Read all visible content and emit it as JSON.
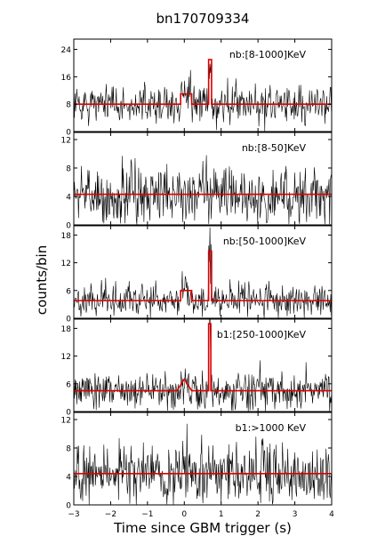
{
  "title": "bn170709334",
  "xlabel": "Time since GBM trigger (s)",
  "ylabel": "counts/bin",
  "colors": {
    "data": "#000000",
    "model": "#dd0000"
  },
  "chart_data": {
    "type": "line",
    "xlim": [
      -3,
      4
    ],
    "xticks": [
      -3,
      -2,
      -1,
      0,
      1,
      2,
      3,
      4
    ],
    "panels": [
      {
        "label": "nb:[8-1000]KeV",
        "ylim": [
          0,
          27
        ],
        "yticks": [
          0,
          8,
          16,
          24
        ],
        "baseline": 8,
        "noise": 2.8,
        "model": [
          [
            -3,
            8
          ],
          [
            -0.1,
            8
          ],
          [
            -0.1,
            11
          ],
          [
            0.2,
            11
          ],
          [
            0.2,
            8
          ],
          [
            0.66,
            8
          ],
          [
            0.66,
            21
          ],
          [
            0.74,
            21
          ],
          [
            0.74,
            8
          ],
          [
            4,
            8
          ]
        ]
      },
      {
        "label": "nb:[8-50]KeV",
        "ylim": [
          0,
          13
        ],
        "yticks": [
          0,
          4,
          8,
          12
        ],
        "baseline": 4.3,
        "noise": 2.1,
        "model": [
          [
            -3,
            4.3
          ],
          [
            4,
            4.3
          ]
        ]
      },
      {
        "label": "nb:[50-1000]KeV",
        "ylim": [
          0,
          20
        ],
        "yticks": [
          0,
          6,
          12,
          18
        ],
        "baseline": 3.8,
        "noise": 1.8,
        "model": [
          [
            -3,
            3.8
          ],
          [
            -0.1,
            3.8
          ],
          [
            -0.1,
            6
          ],
          [
            0.2,
            6
          ],
          [
            0.2,
            3.8
          ],
          [
            0.66,
            3.8
          ],
          [
            0.66,
            14.5
          ],
          [
            0.74,
            14.5
          ],
          [
            0.74,
            3.8
          ],
          [
            4,
            3.8
          ]
        ]
      },
      {
        "label": "b1:[250-1000]KeV",
        "ylim": [
          0,
          20
        ],
        "yticks": [
          0,
          6,
          12,
          18
        ],
        "baseline": 4.5,
        "noise": 2,
        "model": [
          [
            -3,
            4.5
          ],
          [
            -0.2,
            4.5
          ],
          [
            0,
            7
          ],
          [
            0.2,
            4.5
          ],
          [
            0.66,
            4.5
          ],
          [
            0.66,
            19
          ],
          [
            0.72,
            19
          ],
          [
            0.72,
            4.5
          ],
          [
            4,
            4.5
          ]
        ]
      },
      {
        "label": "b1:>1000 KeV",
        "ylim": [
          0,
          13
        ],
        "yticks": [
          0,
          4,
          8,
          12
        ],
        "baseline": 4.4,
        "noise": 2.2,
        "model": [
          [
            -3,
            4.4
          ],
          [
            4,
            4.4
          ]
        ]
      }
    ]
  }
}
